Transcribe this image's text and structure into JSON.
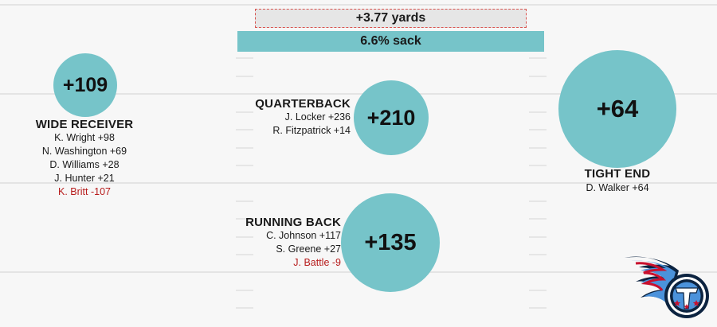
{
  "chart_data": {
    "type": "bubble",
    "summary": {
      "yards": "+3.77 yards",
      "sack": "6.6% sack"
    },
    "positions": [
      {
        "key": "wr",
        "title": "WIDE RECEIVER",
        "value": 109,
        "label": "+109",
        "players": [
          {
            "text": "K. Wright +98",
            "value": 98
          },
          {
            "text": "N. Washington +69",
            "value": 69
          },
          {
            "text": "D. Williams +28",
            "value": 28
          },
          {
            "text": "J. Hunter +21",
            "value": 21
          },
          {
            "text": "K. Britt -107",
            "value": -107
          }
        ]
      },
      {
        "key": "qb",
        "title": "QUARTERBACK",
        "value": 210,
        "label": "+210",
        "players": [
          {
            "text": "J. Locker +236",
            "value": 236
          },
          {
            "text": "R. Fitzpatrick +14",
            "value": 14
          }
        ]
      },
      {
        "key": "rb",
        "title": "RUNNING BACK",
        "value": 135,
        "label": "+135",
        "players": [
          {
            "text": "C. Johnson +117",
            "value": 117
          },
          {
            "text": "S. Greene +27",
            "value": 27
          },
          {
            "text": "J. Battle -9",
            "value": -9
          }
        ]
      },
      {
        "key": "te",
        "title": "TIGHT END",
        "value": 64,
        "label": "+64",
        "players": [
          {
            "text": "D. Walker +64",
            "value": 64
          }
        ]
      }
    ]
  },
  "colors": {
    "bubble": "#76c4c9",
    "negative": "#b71c1c",
    "logo_navy": "#0c2340",
    "logo_blue": "#4b92db",
    "logo_red": "#c8102e"
  },
  "logo": {
    "icon": "titans-logo-icon"
  }
}
